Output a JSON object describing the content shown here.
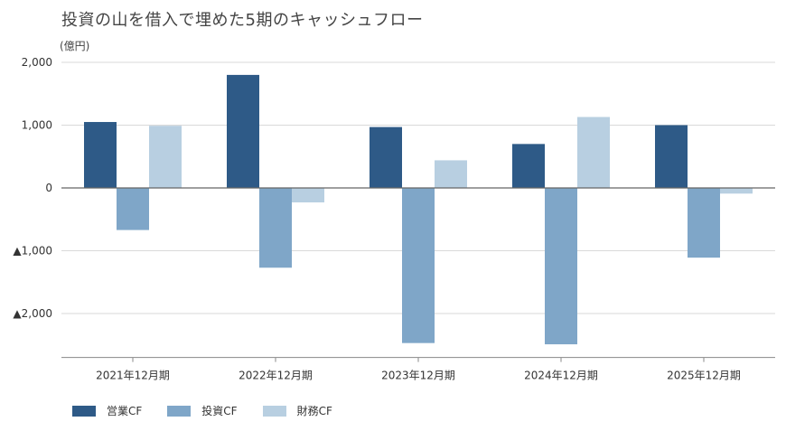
{
  "chart_data": {
    "type": "bar",
    "title": "投資の山を借入で埋めた5期のキャッシュフロー",
    "unit_label": "(億円)",
    "categories": [
      "2021年12月期",
      "2022年12月期",
      "2023年12月期",
      "2024年12月期",
      "2025年12月期"
    ],
    "series": [
      {
        "name": "営業CF",
        "color": "#2e5a87",
        "values": [
          1050,
          1800,
          970,
          700,
          1000
        ]
      },
      {
        "name": "投資CF",
        "color": "#7fa6c8",
        "values": [
          -670,
          -1270,
          -2470,
          -2490,
          -1110
        ]
      },
      {
        "name": "財務CF",
        "color": "#b8cfe1",
        "values": [
          990,
          -230,
          440,
          1130,
          -90
        ]
      }
    ],
    "ylim": [
      -2700,
      2000
    ],
    "yticks": [
      2000,
      1000,
      0,
      -1000,
      -2000
    ],
    "ytick_labels": [
      "2,000",
      "1,000",
      "0",
      "▲1,000",
      "▲2,000"
    ],
    "grid": true,
    "legend_position": "bottom-left"
  }
}
